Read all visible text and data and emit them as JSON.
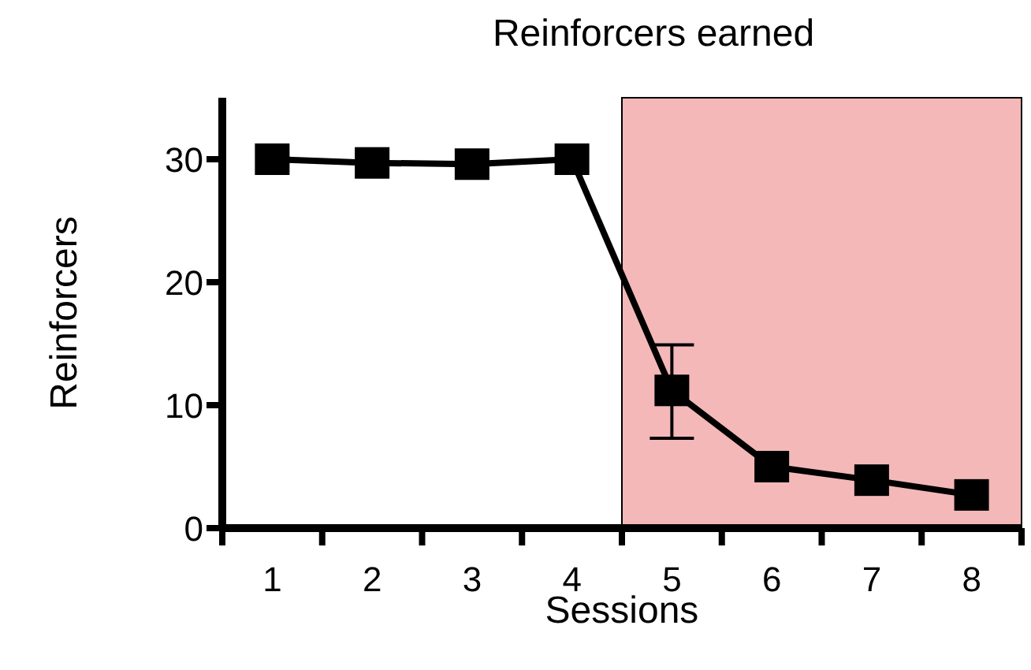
{
  "chart_data": {
    "type": "line",
    "title": "Reinforcers earned",
    "xlabel": "Sessions",
    "ylabel": "Reinforcers",
    "categories": [
      "1",
      "2",
      "3",
      "4",
      "5",
      "6",
      "7",
      "8"
    ],
    "series": [
      {
        "color": "#000000",
        "values": [
          30,
          29.7,
          29.6,
          30,
          11.2,
          5.0,
          3.9,
          2.7
        ],
        "errors": [
          null,
          null,
          null,
          null,
          [
            7.3,
            14.9
          ],
          null,
          null,
          null
        ]
      }
    ],
    "ylim": [
      0,
      35
    ],
    "yticks": [
      0,
      10,
      20,
      30
    ],
    "marker": "square",
    "line_style": "solid",
    "bands": [
      {
        "axis": "x",
        "from": "5",
        "to": "8",
        "color": "#f4b8b8"
      }
    ]
  }
}
